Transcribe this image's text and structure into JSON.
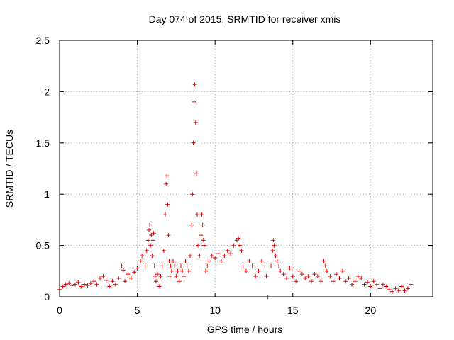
{
  "chart_data": {
    "type": "scatter",
    "title": "Day 074 of 2015, SRMTID for receiver xmis",
    "xlabel": "GPS time / hours",
    "ylabel": "SRMTID / TECUs",
    "xlim": [
      0,
      24
    ],
    "ylim": [
      0,
      2.5
    ],
    "xticks": [
      0,
      5,
      10,
      15,
      20
    ],
    "xtick_labels": [
      "0",
      "5",
      "10",
      "15",
      "20"
    ],
    "yticks": [
      0,
      0.5,
      1,
      1.5,
      2,
      2.5
    ],
    "ytick_labels": [
      "0",
      "0.5",
      "1",
      "1.5",
      "2",
      "2.5"
    ],
    "grid": true,
    "marker": "+",
    "color": "#e00000",
    "series": [
      {
        "name": "SRMTID",
        "x": [
          0.0,
          0.2,
          0.4,
          0.6,
          0.8,
          1.0,
          1.2,
          1.4,
          1.6,
          1.8,
          2.0,
          2.2,
          2.4,
          2.6,
          2.8,
          3.0,
          3.2,
          3.4,
          3.6,
          3.8,
          4.0,
          4.1,
          4.2,
          4.4,
          4.6,
          4.8,
          5.0,
          5.2,
          5.3,
          5.5,
          5.6,
          5.7,
          5.75,
          5.8,
          5.85,
          5.9,
          5.95,
          6.0,
          6.05,
          6.1,
          6.15,
          6.2,
          6.3,
          6.4,
          6.5,
          6.6,
          6.7,
          6.8,
          6.85,
          6.9,
          6.95,
          7.0,
          7.05,
          7.1,
          7.15,
          7.2,
          7.3,
          7.4,
          7.5,
          7.6,
          7.7,
          7.8,
          7.9,
          8.0,
          8.1,
          8.2,
          8.3,
          8.4,
          8.5,
          8.55,
          8.6,
          8.65,
          8.7,
          8.75,
          8.8,
          8.85,
          8.9,
          9.0,
          9.1,
          9.15,
          9.2,
          9.25,
          9.3,
          9.4,
          9.5,
          9.6,
          9.8,
          10.0,
          10.2,
          10.4,
          10.6,
          10.8,
          11.0,
          11.2,
          11.4,
          11.5,
          11.6,
          11.7,
          11.8,
          12.0,
          12.2,
          12.4,
          12.6,
          12.8,
          13.0,
          13.2,
          13.3,
          13.4,
          13.6,
          13.7,
          13.75,
          13.8,
          13.9,
          14.0,
          14.1,
          14.2,
          14.4,
          14.6,
          14.8,
          15.0,
          15.2,
          15.4,
          15.6,
          15.8,
          16.0,
          16.2,
          16.4,
          16.6,
          16.8,
          17.0,
          17.1,
          17.2,
          17.4,
          17.6,
          17.8,
          18.0,
          18.2,
          18.4,
          18.6,
          18.8,
          19.0,
          19.2,
          19.4,
          19.6,
          19.8,
          20.0,
          20.2,
          20.4,
          20.6,
          20.8,
          21.0,
          21.2,
          21.4,
          21.6,
          21.8,
          22.0,
          22.2,
          22.4,
          22.6
        ],
        "y": [
          0.07,
          0.1,
          0.12,
          0.13,
          0.11,
          0.12,
          0.14,
          0.1,
          0.12,
          0.11,
          0.13,
          0.15,
          0.12,
          0.18,
          0.2,
          0.16,
          0.1,
          0.15,
          0.12,
          0.18,
          0.3,
          0.26,
          0.15,
          0.22,
          0.18,
          0.24,
          0.28,
          0.35,
          0.4,
          0.3,
          0.45,
          0.55,
          0.65,
          0.7,
          0.5,
          0.6,
          0.4,
          0.55,
          0.62,
          0.3,
          0.2,
          0.15,
          0.22,
          0.1,
          0.2,
          0.3,
          0.45,
          0.8,
          1.1,
          1.18,
          0.9,
          0.6,
          0.35,
          0.2,
          0.3,
          0.25,
          0.35,
          0.3,
          0.2,
          0.25,
          0.15,
          0.3,
          0.25,
          0.2,
          0.35,
          0.3,
          0.25,
          0.4,
          0.7,
          1.0,
          1.5,
          1.9,
          2.07,
          1.7,
          1.2,
          0.8,
          0.5,
          0.4,
          0.6,
          0.8,
          0.7,
          0.55,
          0.5,
          0.25,
          0.3,
          0.35,
          0.4,
          0.38,
          0.42,
          0.35,
          0.4,
          0.45,
          0.42,
          0.5,
          0.55,
          0.57,
          0.5,
          0.45,
          0.3,
          0.25,
          0.35,
          0.3,
          0.2,
          0.25,
          0.35,
          0.3,
          0.2,
          0.0,
          0.3,
          0.45,
          0.55,
          0.5,
          0.4,
          0.35,
          0.3,
          0.25,
          0.22,
          0.18,
          0.28,
          0.2,
          0.15,
          0.25,
          0.22,
          0.18,
          0.2,
          0.15,
          0.22,
          0.2,
          0.15,
          0.35,
          0.3,
          0.25,
          0.2,
          0.15,
          0.22,
          0.18,
          0.25,
          0.15,
          0.18,
          0.12,
          0.15,
          0.2,
          0.18,
          0.12,
          0.14,
          0.1,
          0.15,
          0.12,
          0.08,
          0.12,
          0.1,
          0.07,
          0.05,
          0.08,
          0.06,
          0.1,
          0.06,
          0.08,
          0.12
        ]
      }
    ]
  }
}
